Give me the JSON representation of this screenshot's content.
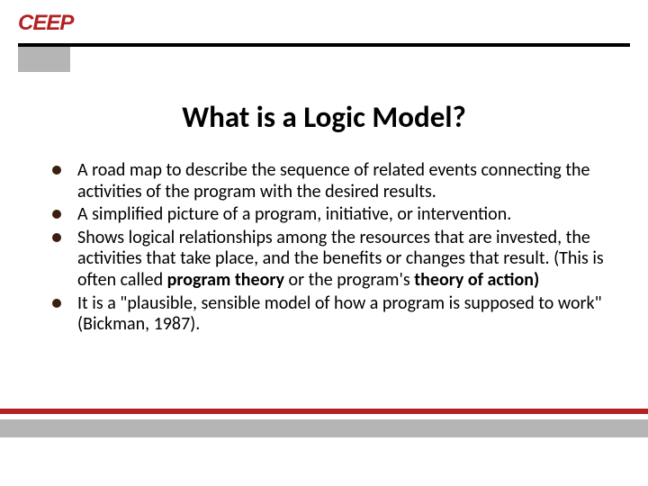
{
  "logo": {
    "text": "CEEP",
    "color": "#b22222",
    "fontsize": 24
  },
  "top_rule_color": "#000000",
  "gray_block_color": "#b5b5b5",
  "title": {
    "text": "What is a Logic Model?",
    "fontsize": 33,
    "color": "#000000"
  },
  "body": {
    "fontsize": 20,
    "color": "#000000",
    "bullet_color": "#3b1f0f",
    "items": [
      {
        "html": "A road map to describe the sequence of related events connecting the activities of the program with the desired results."
      },
      {
        "html": "A simplified picture of a program, initiative, or intervention."
      },
      {
        "html": "Shows logical relationships among the resources that are invested, the activities that take place, and the benefits or changes that result. (This is often called <b>program theory</b> or the program's <b>theory of action)</b>"
      },
      {
        "html": "It is a \"plausible, sensible model of how a program is supposed to work\" (Bickman, 1987)."
      }
    ]
  },
  "bottom": {
    "red_color": "#b22222",
    "gray_color": "#b5b5b5"
  }
}
